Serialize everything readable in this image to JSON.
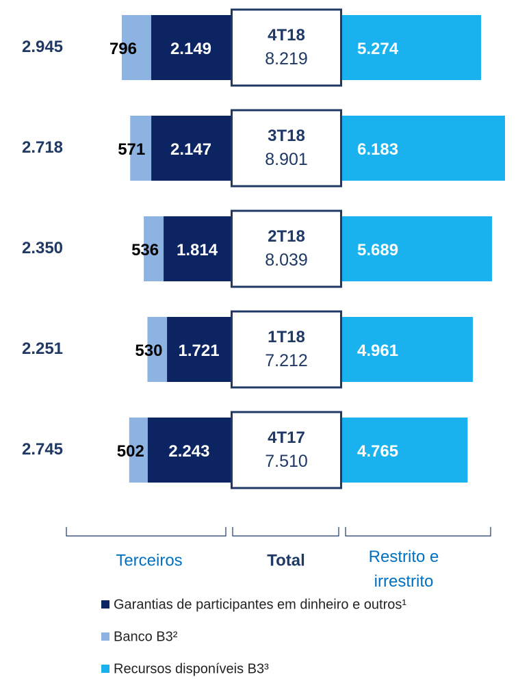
{
  "chart_data": {
    "type": "bar",
    "orientation": "horizontal",
    "stacked": true,
    "categories": [
      "4T18",
      "3T18",
      "2T18",
      "1T18",
      "4T17"
    ],
    "series": [
      {
        "name": "Garantias de participantes em dinheiro e outros¹",
        "color": "#0c2461",
        "side": "left",
        "values": [
          2149,
          2147,
          1814,
          1721,
          2243
        ],
        "value_labels": [
          "2.149",
          "2.147",
          "1.814",
          "1.721",
          "2.243"
        ]
      },
      {
        "name": "Banco B3²",
        "color": "#8db3e2",
        "side": "left",
        "values": [
          796,
          571,
          536,
          530,
          502
        ]
      },
      {
        "name": "Recursos disponíveis B3³",
        "color": "#1ab2ee",
        "side": "right",
        "values": [
          5274,
          6183,
          5689,
          4961,
          4765
        ],
        "value_labels": [
          "5.274",
          "6.183",
          "5.689",
          "4.961",
          "4.765"
        ]
      }
    ],
    "terceiros_totals": {
      "values": [
        2945,
        2718,
        2350,
        2251,
        2745
      ],
      "value_labels": [
        "2.945",
        "2.718",
        "2.350",
        "2.251",
        "2.745"
      ]
    },
    "totals": {
      "values": [
        8219,
        8901,
        8039,
        7212,
        7510
      ],
      "value_labels": [
        "8.219",
        "8.901",
        "8.039",
        "7.212",
        "7.510"
      ]
    },
    "group_labels": [
      "Terceiros",
      "Total",
      "Restrito e irrestrito"
    ],
    "legend": "bottom-left"
  }
}
